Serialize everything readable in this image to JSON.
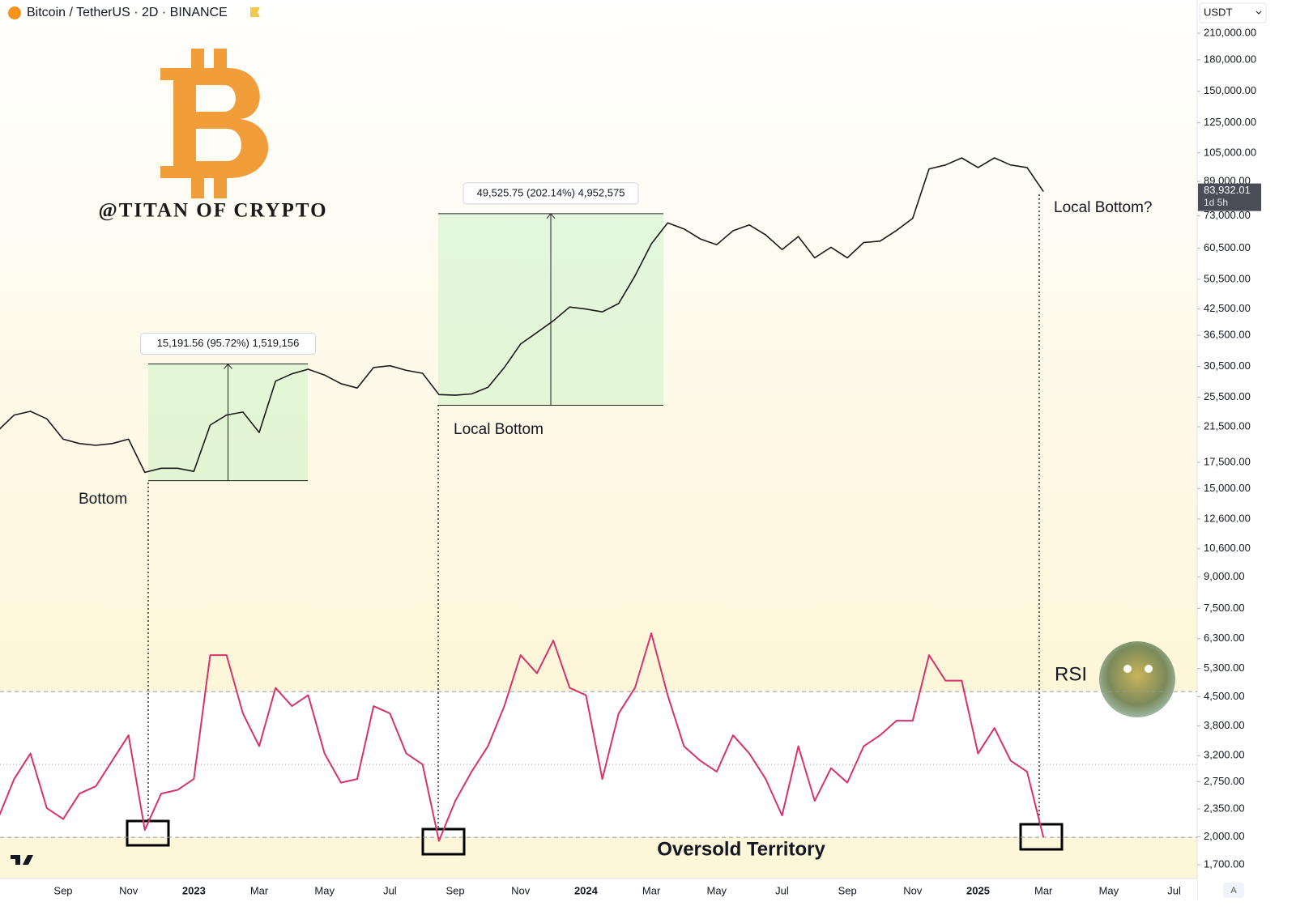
{
  "chart_data": {
    "type": "line",
    "title": "Bitcoin / TetherUS · 2D · BINANCE",
    "watermark": "@TITAN OF CRYPTO",
    "currency": "USDT",
    "countdown": "1d 5h",
    "scale_button": "A",
    "log_scale": true,
    "categories": [
      null,
      null,
      null,
      null,
      "Sep",
      null,
      null,
      null,
      "Nov",
      null,
      null,
      null,
      "2023",
      null,
      null,
      null,
      "Mar",
      null,
      null,
      null,
      "May",
      null,
      null,
      null,
      "Jul",
      null,
      null,
      null,
      "Sep",
      null,
      null,
      null,
      "Nov",
      null,
      null,
      null,
      "2024",
      null,
      null,
      null,
      "Mar",
      null,
      null,
      null,
      "May",
      null,
      null,
      null,
      "Jul",
      null,
      null,
      null,
      "Sep",
      null,
      null,
      null,
      "Nov",
      null,
      null,
      null,
      "2025",
      null,
      null,
      null,
      "Mar",
      null,
      null,
      null,
      "May",
      null,
      null,
      null,
      "Jul",
      null
    ],
    "ylim": [
      1570,
      254600
    ],
    "yticks": [
      {
        "value": 210000,
        "label": "210,000.00"
      },
      {
        "value": 180000,
        "label": "180,000.00"
      },
      {
        "value": 150000,
        "label": "150,000.00"
      },
      {
        "value": 125000,
        "label": "125,000.00"
      },
      {
        "value": 105000,
        "label": "105,000.00"
      },
      {
        "value": 89000,
        "label": "89,000.00"
      },
      {
        "value": 73000,
        "label": "73,000.00"
      },
      {
        "value": 60500,
        "label": "60,500.00"
      },
      {
        "value": 50500,
        "label": "50,500.00"
      },
      {
        "value": 42500,
        "label": "42,500.00"
      },
      {
        "value": 36500,
        "label": "36,500.00"
      },
      {
        "value": 30500,
        "label": "30,500.00"
      },
      {
        "value": 25500,
        "label": "25,500.00"
      },
      {
        "value": 21500,
        "label": "21,500.00"
      },
      {
        "value": 17500,
        "label": "17,500.00"
      },
      {
        "value": 15000,
        "label": "15,000.00"
      },
      {
        "value": 12600,
        "label": "12,600.00"
      },
      {
        "value": 10600,
        "label": "10,600.00"
      },
      {
        "value": 9000,
        "label": "9,000.00"
      },
      {
        "value": 7500,
        "label": "7,500.00"
      },
      {
        "value": 6300,
        "label": "6,300.00"
      },
      {
        "value": 5300,
        "label": "5,300.00"
      },
      {
        "value": 4500,
        "label": "4,500.00"
      },
      {
        "value": 3800,
        "label": "3,800.00"
      },
      {
        "value": 3200,
        "label": "3,200.00"
      },
      {
        "value": 2750,
        "label": "2,750.00"
      },
      {
        "value": 2350,
        "label": "2,350.00"
      },
      {
        "value": 2000,
        "label": "2,000.00"
      },
      {
        "value": 1700,
        "label": "1,700.00"
      }
    ],
    "y2lim": [
      18.7,
      90.9
    ],
    "y2_levels": [
      70,
      50,
      30
    ],
    "series": [
      {
        "color": "#1a1a1a",
        "values": [
          21000,
          23000,
          23500,
          22500,
          20000,
          19500,
          19300,
          19500,
          20000,
          16500,
          16900,
          16900,
          16600,
          21700,
          23000,
          23400,
          20800,
          28000,
          29200,
          30000,
          29000,
          27600,
          26900,
          30300,
          30600,
          29800,
          29300,
          25900,
          25800,
          26000,
          27000,
          30300,
          34700,
          37100,
          39700,
          43000,
          42500,
          41800,
          43900,
          51500,
          62000,
          70000,
          67600,
          63800,
          61700,
          66900,
          69200,
          65300,
          60000,
          64700,
          57200,
          60800,
          57200,
          62500,
          63000,
          67000,
          71900,
          95700,
          97900,
          102000,
          96500,
          102000,
          97900,
          96500,
          83932.01,
          null,
          null,
          null,
          null,
          null,
          null,
          null,
          null,
          null
        ],
        "value_labels": [
          null,
          null,
          null,
          null,
          null,
          null,
          null,
          null,
          null,
          null,
          null,
          null,
          null,
          null,
          null,
          null,
          null,
          null,
          null,
          null,
          null,
          null,
          null,
          null,
          null,
          null,
          null,
          null,
          null,
          null,
          null,
          null,
          null,
          null,
          null,
          null,
          null,
          null,
          null,
          null,
          null,
          null,
          null,
          null,
          null,
          null,
          null,
          null,
          null,
          null,
          null,
          null,
          null,
          null,
          null,
          null,
          null,
          null,
          null,
          null,
          null,
          null,
          null,
          null,
          "83,932.01",
          null,
          null,
          null,
          null,
          null,
          null,
          null,
          null,
          null
        ]
      },
      {
        "name": "RSI",
        "color": "#d6336c",
        "axis": "y2",
        "values": [
          35,
          46,
          53,
          38,
          35,
          42,
          44,
          51,
          58,
          32,
          42,
          43,
          46,
          80,
          80,
          64,
          55,
          71,
          66,
          69,
          53,
          45,
          46,
          66,
          64,
          53,
          50,
          29,
          40,
          48,
          55,
          66,
          80,
          75,
          84,
          71,
          69,
          46,
          64,
          71,
          86,
          69,
          55,
          51,
          48,
          58,
          53,
          46,
          36,
          55,
          40,
          49,
          45,
          55,
          58,
          62,
          62,
          80,
          73,
          73,
          53,
          60,
          51,
          48,
          30,
          null,
          null,
          null,
          null,
          null,
          null,
          null,
          null,
          null
        ]
      }
    ],
    "measurements": [
      {
        "label": "15,191.56 (95.72%) 1,519,156",
        "from": 15730,
        "to": 30921.56
      },
      {
        "label": "49,525.75 (202.14%) 4,952,575",
        "from": 24340,
        "to": 73865.75
      }
    ],
    "annotations": [
      "Bottom",
      "Local Bottom",
      "Local Bottom?"
    ],
    "oversold_label": "Oversold Territory"
  }
}
